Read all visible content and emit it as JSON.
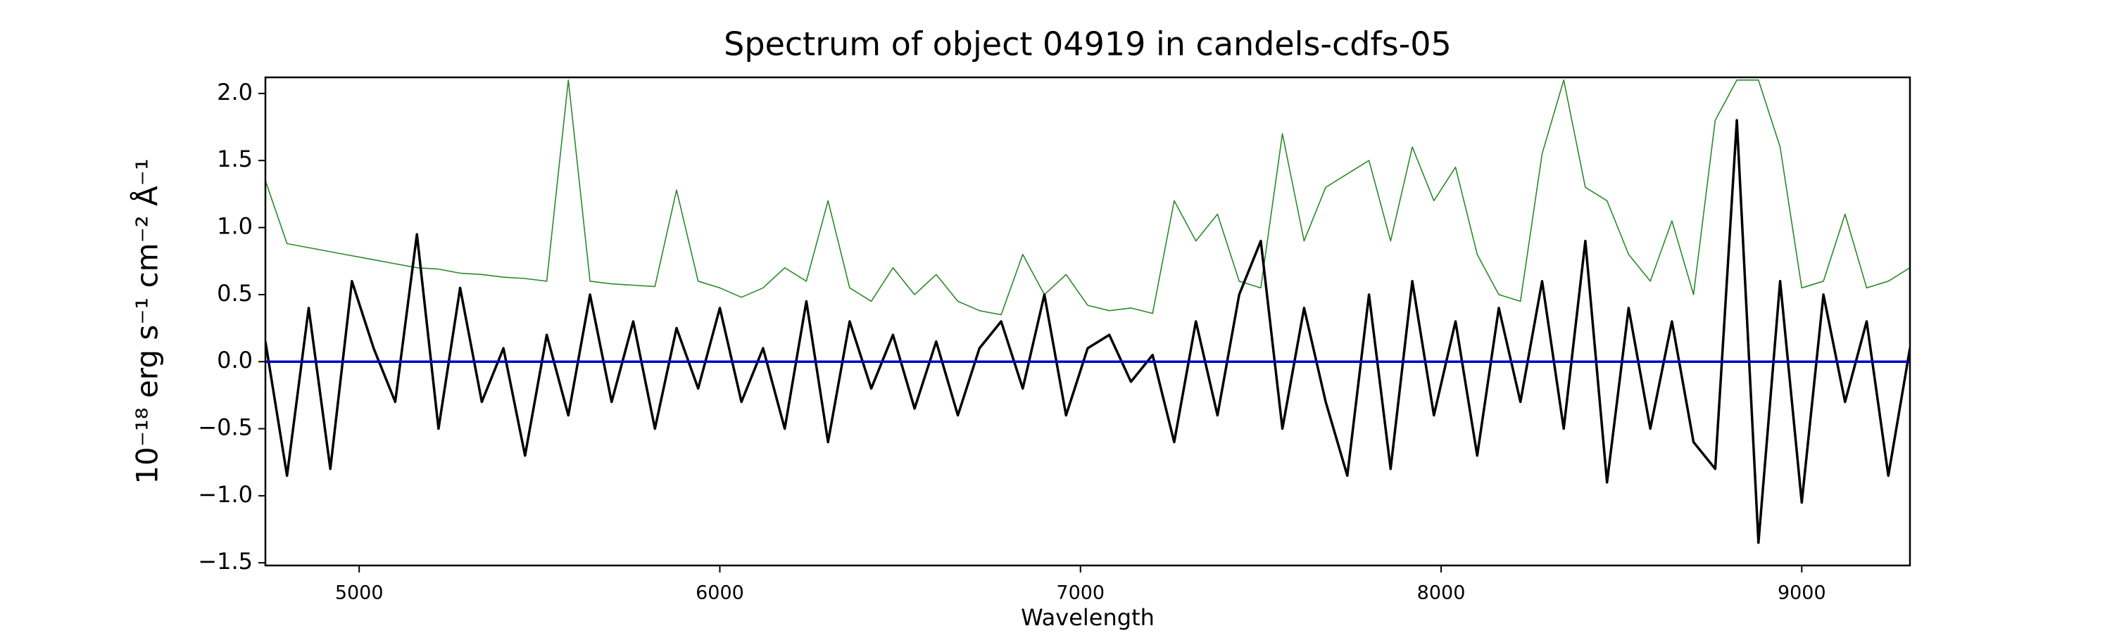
{
  "chart_data": {
    "type": "line",
    "title": "Spectrum of object 04919 in candels-cdfs-05",
    "xlabel": "Wavelength",
    "ylabel": "10⁻¹⁸ erg s⁻¹ cm⁻² Å⁻¹",
    "x": [
      4740,
      4800,
      4860,
      4920,
      4980,
      5040,
      5100,
      5160,
      5220,
      5280,
      5340,
      5400,
      5460,
      5520,
      5580,
      5640,
      5700,
      5760,
      5820,
      5880,
      5940,
      6000,
      6060,
      6120,
      6180,
      6240,
      6300,
      6360,
      6420,
      6480,
      6540,
      6600,
      6660,
      6720,
      6780,
      6840,
      6900,
      6960,
      7020,
      7080,
      7140,
      7200,
      7260,
      7320,
      7380,
      7440,
      7500,
      7560,
      7620,
      7680,
      7740,
      7800,
      7860,
      7920,
      7980,
      8040,
      8100,
      8160,
      8220,
      8280,
      8340,
      8400,
      8460,
      8520,
      8580,
      8640,
      8700,
      8760,
      8820,
      8880,
      8940,
      9000,
      9060,
      9120,
      9180,
      9240,
      9300
    ],
    "series": [
      {
        "color": "#2a8a2a",
        "values": [
          1.35,
          0.88,
          0.85,
          0.82,
          0.79,
          0.76,
          0.73,
          0.7,
          0.69,
          0.66,
          0.65,
          0.63,
          0.62,
          0.6,
          2.1,
          0.6,
          0.58,
          0.57,
          0.56,
          1.28,
          0.6,
          0.55,
          0.48,
          0.55,
          0.7,
          0.6,
          1.2,
          0.55,
          0.45,
          0.7,
          0.5,
          0.65,
          0.45,
          0.38,
          0.35,
          0.8,
          0.5,
          0.65,
          0.42,
          0.38,
          0.4,
          0.36,
          1.2,
          0.9,
          1.1,
          0.6,
          0.55,
          1.7,
          0.9,
          1.3,
          1.4,
          1.5,
          0.9,
          1.6,
          1.2,
          1.45,
          0.8,
          0.5,
          0.45,
          1.55,
          2.1,
          1.3,
          1.2,
          0.8,
          0.6,
          1.05,
          0.5,
          1.8,
          2.1,
          2.1,
          1.6,
          0.55,
          0.6,
          1.1,
          0.55,
          0.6,
          0.7
        ]
      },
      {
        "color": "#000000",
        "values": [
          0.15,
          -0.85,
          0.4,
          -0.8,
          0.6,
          0.1,
          -0.3,
          0.95,
          -0.5,
          0.55,
          -0.3,
          0.1,
          -0.7,
          0.2,
          -0.4,
          0.5,
          -0.3,
          0.3,
          -0.5,
          0.25,
          -0.2,
          0.4,
          -0.3,
          0.1,
          -0.5,
          0.45,
          -0.6,
          0.3,
          -0.2,
          0.2,
          -0.35,
          0.15,
          -0.4,
          0.1,
          0.3,
          -0.2,
          0.5,
          -0.4,
          0.1,
          0.2,
          -0.15,
          0.05,
          -0.6,
          0.3,
          -0.4,
          0.5,
          0.9,
          -0.5,
          0.4,
          -0.3,
          -0.85,
          0.5,
          -0.8,
          0.6,
          -0.4,
          0.3,
          -0.7,
          0.4,
          -0.3,
          0.6,
          -0.5,
          0.9,
          -0.9,
          0.4,
          -0.5,
          0.3,
          -0.6,
          -0.8,
          1.8,
          -1.35,
          0.6,
          -1.05,
          0.5,
          -0.3,
          0.3,
          -0.85,
          0.1
        ]
      },
      {
        "color": "#0000cc",
        "values": [
          0,
          0,
          0,
          0,
          0,
          0,
          0,
          0,
          0,
          0,
          0,
          0,
          0,
          0,
          0,
          0,
          0,
          0,
          0,
          0,
          0,
          0,
          0,
          0,
          0,
          0,
          0,
          0,
          0,
          0,
          0,
          0,
          0,
          0,
          0,
          0,
          0,
          0,
          0,
          0,
          0,
          0,
          0,
          0,
          0,
          0,
          0,
          0,
          0,
          0,
          0,
          0,
          0,
          0,
          0,
          0,
          0,
          0,
          0,
          0,
          0,
          0,
          0,
          0,
          0,
          0,
          0,
          0,
          0,
          0,
          0,
          0,
          0,
          0,
          0,
          0,
          0
        ]
      }
    ],
    "xlim": [
      4740,
      9300
    ],
    "ylim": [
      -1.52,
      2.12
    ],
    "xticks": [
      5000,
      6000,
      7000,
      8000,
      9000
    ],
    "yticks": [
      {
        "value": -1.5,
        "label": "−1.5"
      },
      {
        "value": -1.0,
        "label": "−1.0"
      },
      {
        "value": -0.5,
        "label": "−0.5"
      },
      {
        "value": 0,
        "label": "0.0"
      },
      {
        "value": 0.5,
        "label": "0.5"
      },
      {
        "value": 1.0,
        "label": "1.0"
      },
      {
        "value": 1.5,
        "label": "1.5"
      },
      {
        "value": 2.0,
        "label": "2.0"
      }
    ]
  }
}
